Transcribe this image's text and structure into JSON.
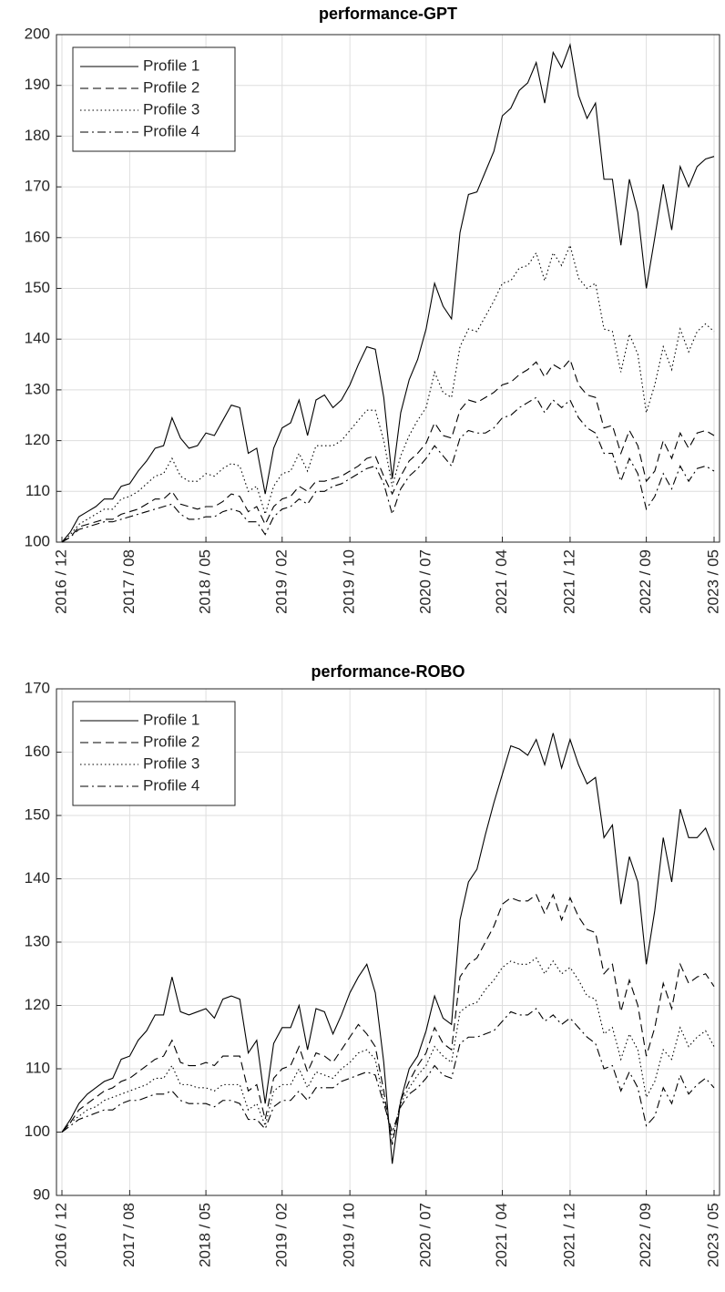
{
  "chart_data": [
    {
      "type": "line",
      "title": "performance-GPT",
      "categories": [
        "2016 / 12",
        null,
        null,
        null,
        null,
        null,
        null,
        null,
        "2017 / 08",
        null,
        null,
        null,
        null,
        null,
        null,
        null,
        null,
        "2018 / 05",
        null,
        null,
        null,
        null,
        null,
        null,
        null,
        null,
        "2019 / 02",
        null,
        null,
        null,
        null,
        null,
        null,
        null,
        "2019 / 10",
        null,
        null,
        null,
        null,
        null,
        null,
        null,
        null,
        "2020 / 07",
        null,
        null,
        null,
        null,
        null,
        null,
        null,
        null,
        "2021 / 04",
        null,
        null,
        null,
        null,
        null,
        null,
        null,
        "2021 / 12",
        null,
        null,
        null,
        null,
        null,
        null,
        null,
        null,
        "2022 / 09",
        null,
        null,
        null,
        null,
        null,
        null,
        null,
        "2023 / 05"
      ],
      "ylim": [
        100,
        200
      ],
      "yticks": [
        100,
        110,
        120,
        130,
        140,
        150,
        160,
        170,
        180,
        190,
        200
      ],
      "grid": true,
      "legend": "northwest",
      "series": [
        {
          "name": "Profile 1",
          "color": "#000000",
          "style": "solid",
          "values": [
            100,
            102,
            105,
            106,
            107,
            108.5,
            108.5,
            111,
            111.5,
            114,
            116,
            118.5,
            119,
            124.5,
            120.5,
            118.5,
            119,
            121.5,
            121,
            124,
            127,
            126.5,
            117.5,
            118.5,
            109.5,
            118.5,
            122.5,
            123.5,
            128,
            121,
            128,
            129,
            126.5,
            128,
            131,
            135,
            138.5,
            138,
            128.5,
            112.5,
            125.5,
            132,
            136,
            142,
            151,
            146.5,
            144,
            161,
            168.5,
            169,
            173,
            177,
            184,
            185.5,
            189,
            190.5,
            194.5,
            186.5,
            196.5,
            193.5,
            198,
            188,
            183.5,
            186.5,
            171.5,
            171.5,
            158.5,
            171.5,
            165,
            150,
            160,
            170.5,
            161.5,
            174,
            170,
            174,
            175.5,
            176
          ]
        },
        {
          "name": "Profile 2",
          "color": "#000000",
          "style": "dashed",
          "values": [
            100,
            101,
            103,
            103.5,
            104,
            104.5,
            104.5,
            105.5,
            106,
            106.5,
            107.5,
            108.5,
            108.5,
            110,
            107.5,
            107,
            106.5,
            107,
            107,
            108,
            109.5,
            109,
            106,
            107,
            103.5,
            107,
            108.5,
            109,
            111,
            110,
            112,
            112,
            112.5,
            113,
            114,
            115,
            116.5,
            117,
            113,
            109.5,
            113,
            116,
            117.5,
            119.5,
            123.5,
            121,
            120.5,
            126,
            128,
            127.5,
            128.5,
            129.5,
            131,
            131.5,
            133,
            134,
            135.5,
            132.5,
            135,
            134,
            136,
            131,
            129,
            128.5,
            122.5,
            123,
            117.5,
            122,
            119,
            112,
            114,
            120,
            116.5,
            121.5,
            118.5,
            121.5,
            122,
            121
          ]
        },
        {
          "name": "Profile 3",
          "color": "#000000",
          "style": "dotted",
          "values": [
            100,
            101.5,
            103.5,
            104.5,
            105.5,
            106.5,
            106.5,
            108.5,
            109,
            110,
            111.5,
            113,
            113.5,
            116.5,
            113,
            112,
            112,
            113.5,
            113,
            114.5,
            115.5,
            115,
            110,
            111,
            105.5,
            111,
            113.5,
            114,
            117.5,
            114,
            119,
            119,
            119,
            120,
            122,
            124,
            126,
            126,
            120,
            111,
            117,
            121,
            124,
            126.5,
            133.5,
            129.5,
            128.5,
            138.5,
            142,
            141.5,
            144.5,
            147.5,
            151,
            151.5,
            154,
            154.5,
            157,
            151.5,
            157,
            154.5,
            158.5,
            152,
            150,
            151,
            142,
            141.5,
            133.5,
            141,
            137,
            125.5,
            131,
            138.5,
            134,
            142,
            137.5,
            141.5,
            143,
            141.5
          ]
        },
        {
          "name": "Profile 4",
          "color": "#000000",
          "style": "dashdot",
          "values": [
            100,
            101,
            102.5,
            103,
            103.5,
            104,
            104,
            104.5,
            105,
            105.5,
            106,
            106.5,
            107,
            107.5,
            105.5,
            104.5,
            104.5,
            105,
            105,
            106,
            106.5,
            106,
            104,
            104,
            101.5,
            105,
            106.5,
            107,
            108.5,
            107.5,
            110,
            110,
            111,
            111.5,
            112.5,
            113.5,
            114.5,
            115,
            111.5,
            105.5,
            110.5,
            113,
            114.5,
            116.5,
            119,
            117,
            115,
            120.5,
            122,
            121.5,
            121.5,
            122.5,
            124.5,
            125,
            126.5,
            127.5,
            128.5,
            125.5,
            128,
            126.5,
            128,
            124.5,
            122.5,
            121.5,
            117.5,
            117.5,
            112,
            116.5,
            113.5,
            106.5,
            109,
            113.5,
            110.5,
            115,
            112,
            114.5,
            115,
            114
          ]
        }
      ]
    },
    {
      "type": "line",
      "title": "performance-ROBO",
      "categories": [
        "2016 / 12",
        null,
        null,
        null,
        null,
        null,
        null,
        null,
        "2017 / 08",
        null,
        null,
        null,
        null,
        null,
        null,
        null,
        null,
        "2018 / 05",
        null,
        null,
        null,
        null,
        null,
        null,
        null,
        null,
        "2019 / 02",
        null,
        null,
        null,
        null,
        null,
        null,
        null,
        "2019 / 10",
        null,
        null,
        null,
        null,
        null,
        null,
        null,
        null,
        "2020 / 07",
        null,
        null,
        null,
        null,
        null,
        null,
        null,
        null,
        "2021 / 04",
        null,
        null,
        null,
        null,
        null,
        null,
        null,
        "2021 / 12",
        null,
        null,
        null,
        null,
        null,
        null,
        null,
        null,
        "2022 / 09",
        null,
        null,
        null,
        null,
        null,
        null,
        null,
        "2023 / 05"
      ],
      "ylim": [
        90,
        170
      ],
      "yticks": [
        90,
        100,
        110,
        120,
        130,
        140,
        150,
        160,
        170
      ],
      "grid": true,
      "legend": "northwest",
      "series": [
        {
          "name": "Profile 1",
          "color": "#000000",
          "style": "solid",
          "values": [
            100,
            102,
            104.5,
            106,
            107,
            108,
            108.5,
            111.5,
            112,
            114.5,
            116,
            118.5,
            118.5,
            124.5,
            119,
            118.5,
            119,
            119.5,
            118,
            121,
            121.5,
            121,
            112.5,
            114.5,
            104.5,
            114,
            116.5,
            116.5,
            120,
            113,
            119.5,
            119,
            115.5,
            118.5,
            122,
            124.5,
            126.5,
            122,
            111,
            95,
            105,
            110,
            112,
            116,
            121.5,
            118,
            117,
            133.5,
            139.5,
            141.5,
            147,
            152,
            156.5,
            161,
            160.5,
            159.5,
            162,
            158,
            163,
            157.5,
            162,
            158,
            155,
            156,
            146.5,
            148.5,
            136,
            143.5,
            139.5,
            126.5,
            135,
            146.5,
            139.5,
            151,
            146.5,
            146.5,
            148,
            144.5
          ]
        },
        {
          "name": "Profile 2",
          "color": "#000000",
          "style": "dashed",
          "values": [
            100,
            101.5,
            103.5,
            104.5,
            105.5,
            106.5,
            107,
            108,
            108.5,
            109.5,
            110.5,
            111.5,
            112,
            114.5,
            111,
            110.5,
            110.5,
            111,
            110.5,
            112,
            112,
            112,
            106.5,
            107.5,
            102,
            108.5,
            110,
            110.5,
            113.5,
            109.5,
            112.5,
            112,
            111,
            113,
            115,
            117,
            115.5,
            113.5,
            106.5,
            98,
            105,
            108,
            110.5,
            112.5,
            116.5,
            114,
            113,
            124.5,
            126.5,
            127.5,
            130,
            132.5,
            136,
            137,
            136.5,
            136.5,
            137.5,
            134.5,
            137.5,
            133.5,
            137,
            134,
            132,
            131.5,
            125,
            126.5,
            119,
            124,
            120,
            112,
            116.5,
            123.5,
            119.5,
            126.5,
            123.5,
            124.5,
            125,
            123
          ]
        },
        {
          "name": "Profile 3",
          "color": "#000000",
          "style": "dotted",
          "values": [
            100,
            101.5,
            102.5,
            103.5,
            104,
            105,
            105.5,
            106,
            106.5,
            107,
            107.5,
            108.5,
            108.5,
            110.5,
            107.5,
            107.5,
            107,
            107,
            106.5,
            107.5,
            107.5,
            107.5,
            103.5,
            104.5,
            101,
            106.5,
            107.5,
            107.5,
            110,
            107,
            109.5,
            109,
            108.5,
            110,
            111,
            112.5,
            113,
            111.5,
            105,
            99,
            104.5,
            107,
            109,
            110.5,
            113.5,
            112,
            111,
            119,
            120,
            120.5,
            122.5,
            124,
            126,
            127,
            126.5,
            126.5,
            127.5,
            125,
            127,
            125,
            126,
            124,
            121.5,
            121,
            115.5,
            116.5,
            111.5,
            115.5,
            113,
            105.5,
            108,
            113,
            111.5,
            116.5,
            113.5,
            115,
            116,
            113.5
          ]
        },
        {
          "name": "Profile 4",
          "color": "#000000",
          "style": "dashdot",
          "values": [
            100,
            101,
            102,
            102.5,
            103,
            103.5,
            103.5,
            104.5,
            105,
            105,
            105.5,
            106,
            106,
            106.5,
            105,
            104.5,
            104.5,
            104.5,
            104,
            105,
            105,
            104.5,
            102,
            102,
            100.5,
            104,
            105,
            105,
            106.5,
            105,
            107,
            107,
            107,
            108,
            108.5,
            109,
            109.5,
            109,
            104.5,
            100,
            104,
            106,
            107,
            108.5,
            110.5,
            109,
            108.5,
            114,
            115,
            115,
            115.5,
            116,
            117.5,
            119,
            118.5,
            118.5,
            119.5,
            117.5,
            118.5,
            117,
            118,
            116.5,
            115,
            114,
            110,
            110.5,
            106.5,
            109.5,
            107,
            101,
            102.5,
            107,
            104.5,
            109,
            106,
            107.5,
            108.5,
            107
          ]
        }
      ]
    }
  ]
}
